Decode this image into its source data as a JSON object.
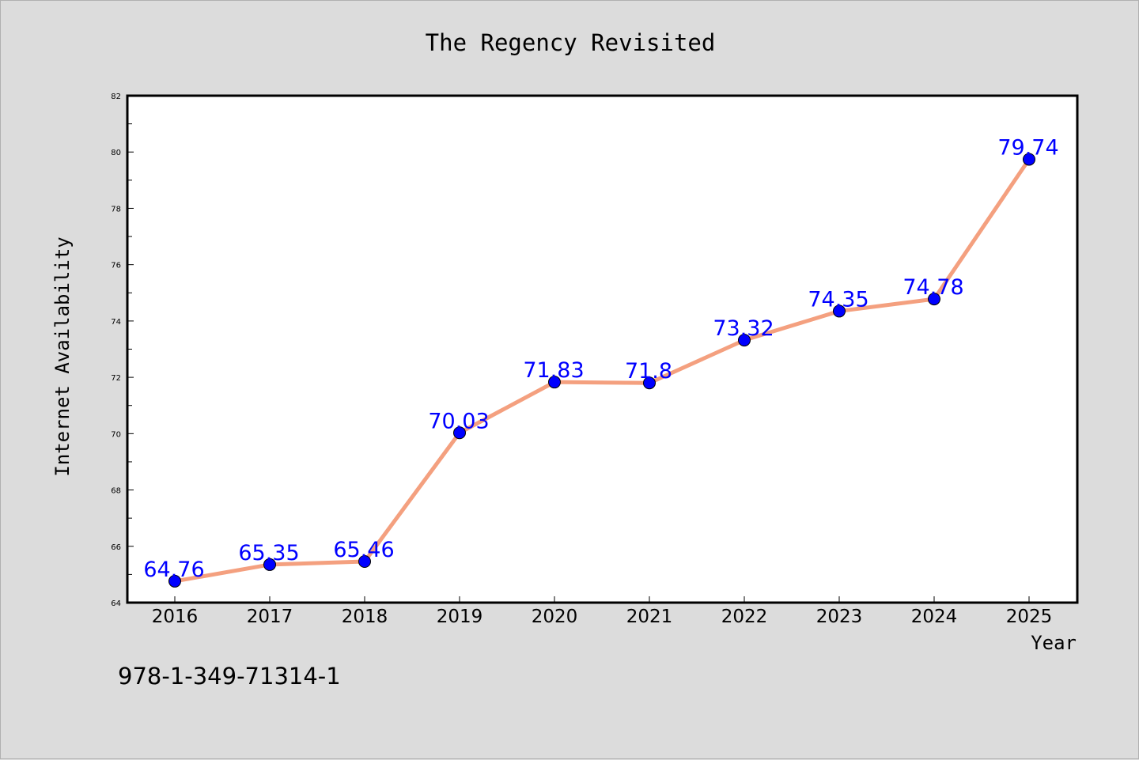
{
  "chart_data": {
    "type": "line",
    "title": "The Regency Revisited",
    "xlabel": "Year",
    "ylabel": "Internet Availability",
    "categories": [
      "2016",
      "2017",
      "2018",
      "2019",
      "2020",
      "2021",
      "2022",
      "2023",
      "2024",
      "2025"
    ],
    "series": [
      {
        "values": [
          64.76,
          65.35,
          65.46,
          70.03,
          71.83,
          71.8,
          73.32,
          74.35,
          74.78,
          79.74
        ],
        "labels": [
          "64.76",
          "65.35",
          "65.46",
          "70.03",
          "71.83",
          "71.8",
          "73.32",
          "74.35",
          "74.78",
          "79.74"
        ],
        "line_color": "#f4a07f",
        "marker_color": "#0000ff"
      }
    ],
    "ylim": [
      64,
      82
    ],
    "yticks": [
      "64",
      "66",
      "68",
      "70",
      "72",
      "74",
      "76",
      "78",
      "80",
      "82"
    ],
    "grid": false,
    "legend": "none"
  },
  "footer_text": "978-1-349-71314-1"
}
